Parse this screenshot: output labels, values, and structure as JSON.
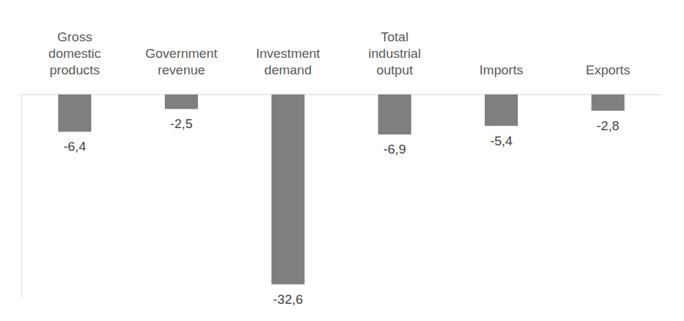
{
  "chart_data": {
    "type": "bar",
    "categories": [
      "Gross domestic products",
      "Government revenue",
      "Investment demand",
      "Total industrial output",
      "Imports",
      "Exports"
    ],
    "values": [
      -6.4,
      -2.5,
      -32.6,
      -6.9,
      -5.4,
      -2.8
    ],
    "value_labels": [
      "-6,4",
      "-2,5",
      "-32,6",
      "-6,9",
      "-5,4",
      "-2,8"
    ],
    "color": "#7f7f7f",
    "ylim": [
      -35,
      0
    ],
    "grid": false,
    "data_labels": true,
    "tick_labels": "x"
  }
}
